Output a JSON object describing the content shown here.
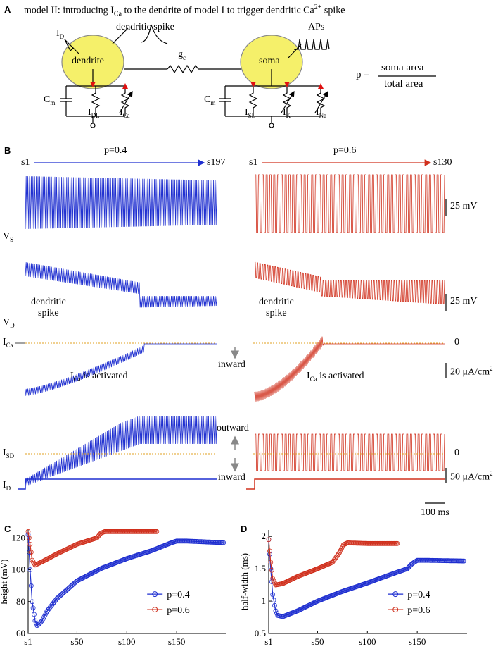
{
  "panel_A": {
    "label": "A",
    "title": "model II: introducing I",
    "title_sub": "Ca",
    "title_rest": " to the dendrite of model I to trigger dendritic Ca",
    "title_sup": "2+",
    "title_end": " spike",
    "dendrite": "dendrite",
    "soma": "soma",
    "dendritic_spike": "dendritic spike",
    "aps": "APs",
    "gc": "g",
    "gc_sub": "c",
    "id": "I",
    "id_sub": "D",
    "cm": "C",
    "cm_sub": "m",
    "idl": "I",
    "idl_sub": "DL",
    "ica": "I",
    "ica_sub": "Ca",
    "isl": "I",
    "isl_sub": "SL",
    "ik": "I",
    "ik_sub": "K",
    "ina": "I",
    "ina_sub": "Na",
    "p_eq": "p =",
    "p_num": "soma area",
    "p_den": "total area"
  },
  "panel_B": {
    "label": "B",
    "left_p": "p=0.4",
    "right_p": "p=0.6",
    "left_start": "s1",
    "left_end": "s197",
    "right_start": "s1",
    "right_end": "s130",
    "vs": "V",
    "vs_sub": "S",
    "vd": "V",
    "vd_sub": "D",
    "ica_row": "I",
    "ica_row_sub": "Ca",
    "isd": "I",
    "isd_sub": "SD",
    "id_row": "I",
    "id_row_sub": "D",
    "scale_25mv_1": "25 mV",
    "scale_25mv_2": "25 mV",
    "scale_20": "20 μA/cm",
    "scale_50": "50 μA/cm",
    "sup2": "2",
    "zero1": "0",
    "zero2": "0",
    "dend_spike_l1": "dendritic",
    "dend_spike_l2": "spike",
    "ica_activated": " is activated",
    "inward": "inward",
    "outward": "outward",
    "inward2": "inward",
    "time_scale": "100 ms"
  },
  "chart_data": [
    {
      "type": "line",
      "panel": "C",
      "ylabel": "height (mV)",
      "ylim": [
        60,
        125
      ],
      "yticks": [
        60,
        80,
        100,
        120
      ],
      "xticks": [
        "s1",
        "s50",
        "s100",
        "s150"
      ],
      "legend_position": "center-right",
      "series": [
        {
          "name": "p=0.4",
          "color": "#1f2fd0",
          "x": [
            1,
            3,
            5,
            8,
            10,
            12,
            15,
            20,
            30,
            50,
            75,
            100,
            125,
            145,
            150,
            160,
            197
          ],
          "y": [
            122,
            100,
            80,
            68,
            65,
            66,
            68,
            74,
            82,
            93,
            101,
            107,
            112,
            117,
            118,
            118,
            117
          ]
        },
        {
          "name": "p=0.6",
          "color": "#d0301d",
          "x": [
            1,
            3,
            5,
            8,
            15,
            30,
            50,
            70,
            74,
            78,
            100,
            130
          ],
          "y": [
            124,
            116,
            106,
            103,
            105,
            110,
            116,
            120,
            123,
            124,
            124,
            124
          ]
        }
      ]
    },
    {
      "type": "line",
      "panel": "D",
      "ylabel": "half-width (ms)",
      "ylim": [
        0.5,
        2.1
      ],
      "yticks": [
        0.5,
        1,
        1.5,
        2
      ],
      "xticks": [
        "s1",
        "s50",
        "s100",
        "s150"
      ],
      "legend_position": "center-right",
      "series": [
        {
          "name": "p=0.4",
          "color": "#1f2fd0",
          "x": [
            1,
            3,
            5,
            8,
            10,
            15,
            30,
            50,
            75,
            100,
            125,
            140,
            145,
            150,
            160,
            197
          ],
          "y": [
            1.95,
            1.5,
            1.1,
            0.85,
            0.78,
            0.76,
            0.85,
            1.0,
            1.15,
            1.28,
            1.42,
            1.5,
            1.58,
            1.63,
            1.63,
            1.62
          ]
        },
        {
          "name": "p=0.6",
          "color": "#d0301d",
          "x": [
            1,
            3,
            5,
            8,
            15,
            30,
            50,
            65,
            72,
            76,
            80,
            100,
            130
          ],
          "y": [
            1.95,
            1.6,
            1.35,
            1.25,
            1.27,
            1.38,
            1.5,
            1.6,
            1.75,
            1.87,
            1.9,
            1.89,
            1.89
          ]
        }
      ]
    }
  ]
}
